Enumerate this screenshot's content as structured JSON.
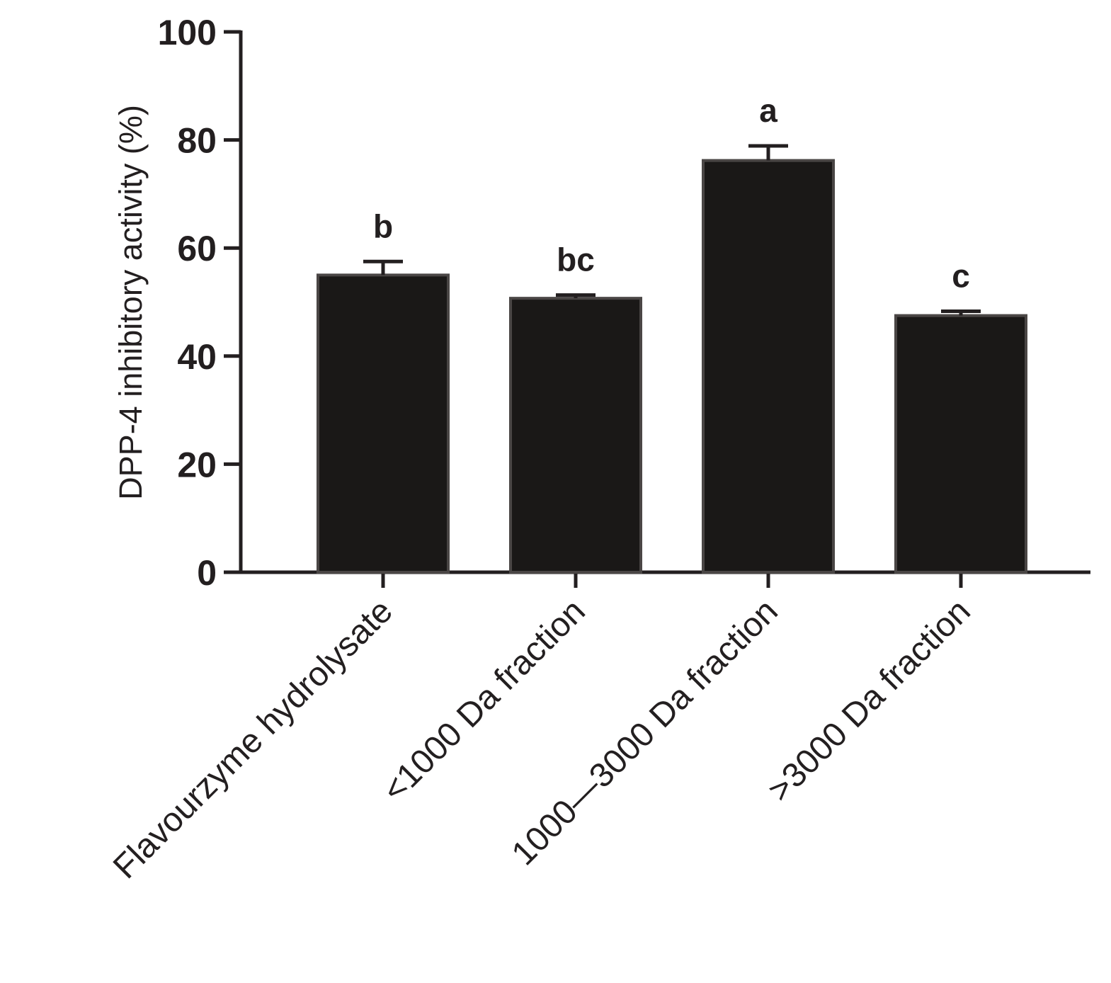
{
  "chart_data": {
    "type": "bar",
    "ylabel": "DPP-4 inhibitory activity (%)",
    "xlabel": "",
    "ylim": [
      0,
      100
    ],
    "yticks": [
      0,
      20,
      40,
      60,
      80,
      100
    ],
    "grid": false,
    "categories": [
      "Flavourzyme hydrolysate",
      "<1000 Da fraction",
      "1000—3000 Da fraction",
      ">3000 Da fraction"
    ],
    "values": [
      55.0,
      50.7,
      76.2,
      47.5
    ],
    "errors": [
      2.5,
      0.6,
      2.7,
      0.8
    ],
    "significance": [
      "b",
      "bc",
      "a",
      "c"
    ],
    "colors": {
      "bar_fill": "#1a1817",
      "bar_edge": "#4a4645",
      "axis": "#231f20"
    }
  }
}
